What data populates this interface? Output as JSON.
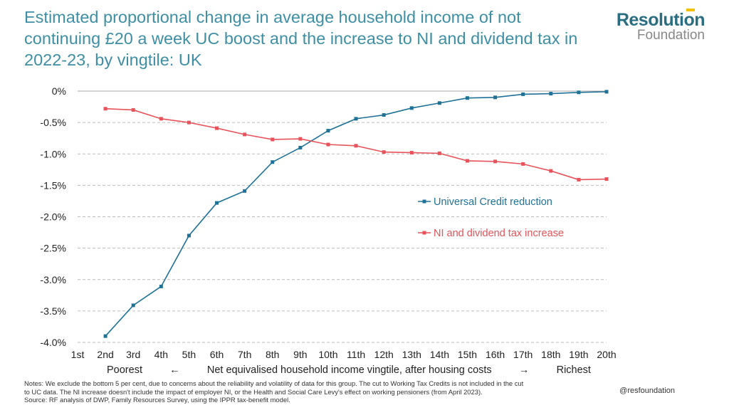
{
  "header": {
    "title": "Estimated proportional change in average household income of not continuing £20 a week UC boost and the increase to NI and dividend tax in 2022-23, by vingtile: UK"
  },
  "logo": {
    "line1": "Resolution",
    "line2": "Foundation"
  },
  "footer": {
    "notes_line1": "Notes: We exclude the bottom 5 per cent, due to concerns about the reliability and volatility of data for this group. The cut to Working Tax Credits is not included in the cut",
    "notes_line2": "to UC data. The NI increase doesn't include the impact of employer NI, or the Health and Social Care Levy's effect on working pensioners (from April 2023).",
    "source": "Source: RF analysis of DWP, Family Resources Survey, using the IPPR tax-benefit model.",
    "handle": "@resfoundation"
  },
  "colors": {
    "uc": "#1f7196",
    "ni": "#e8525a",
    "title": "#3f8fa4",
    "grid": "#bcbcbc"
  },
  "chart_data": {
    "type": "line",
    "x_title_parts": [
      "Poorest",
      "←",
      "Net equivalised household income vingtile, after housing costs",
      "→",
      "Richest"
    ],
    "categories": [
      "1st",
      "2nd",
      "3rd",
      "4th",
      "5th",
      "6th",
      "7th",
      "8th",
      "9th",
      "10th",
      "11th",
      "12th",
      "13th",
      "14th",
      "15th",
      "16th",
      "17th",
      "18th",
      "19th",
      "20th"
    ],
    "y_ticks": [
      "0%",
      "-0.5%",
      "-1.0%",
      "-1.5%",
      "-2.0%",
      "-2.5%",
      "-3.0%",
      "-3.5%",
      "-4.0%"
    ],
    "ylim": [
      -4.0,
      0
    ],
    "grid": "horizontal dashed",
    "legend_position": "center-right",
    "series": [
      {
        "name": "Universal Credit reduction",
        "color": "#1f7196",
        "values": [
          null,
          -3.9,
          -3.41,
          -3.11,
          -2.3,
          -1.78,
          -1.59,
          -1.13,
          -0.9,
          -0.63,
          -0.44,
          -0.38,
          -0.27,
          -0.19,
          -0.11,
          -0.1,
          -0.05,
          -0.04,
          -0.02,
          -0.01
        ]
      },
      {
        "name": "NI and dividend tax increase",
        "color": "#e8525a",
        "values": [
          null,
          -0.28,
          -0.3,
          -0.44,
          -0.5,
          -0.59,
          -0.69,
          -0.77,
          -0.76,
          -0.85,
          -0.87,
          -0.97,
          -0.98,
          -0.99,
          -1.11,
          -1.12,
          -1.16,
          -1.27,
          -1.41,
          -1.4
        ]
      }
    ]
  }
}
